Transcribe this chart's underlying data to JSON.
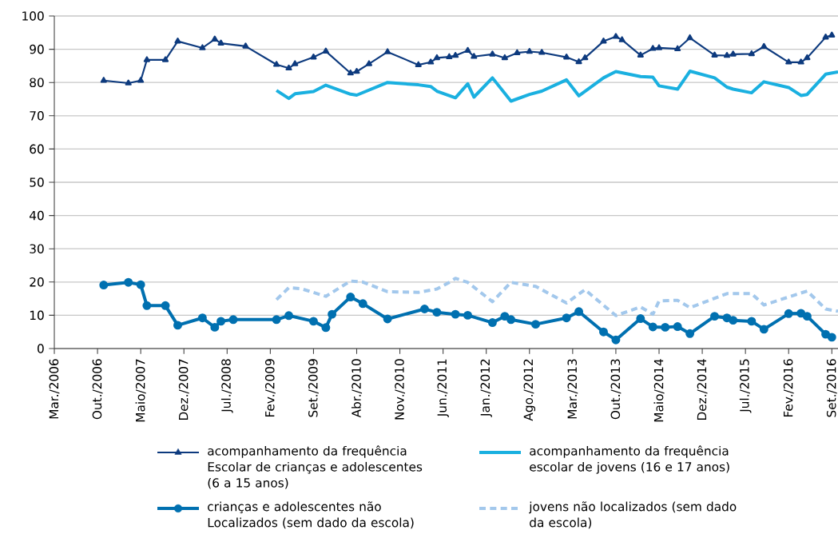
{
  "chart_data": {
    "type": "line",
    "xlim": [
      "2006-03",
      "2016-10"
    ],
    "ylim": [
      0,
      100
    ],
    "yticks": [
      0,
      10,
      20,
      30,
      40,
      50,
      60,
      70,
      80,
      90,
      100
    ],
    "xticks": [
      {
        "value": "2006-03",
        "label": "Mar./2006"
      },
      {
        "value": "2006-10",
        "label": "Out./2006"
      },
      {
        "value": "2007-05",
        "label": "Maio/2007"
      },
      {
        "value": "2007-12",
        "label": "Dez./2007"
      },
      {
        "value": "2008-07",
        "label": "Jul./2008"
      },
      {
        "value": "2009-02",
        "label": "Fev./2009"
      },
      {
        "value": "2009-09",
        "label": "Set./2009"
      },
      {
        "value": "2010-04",
        "label": "Abr./2010"
      },
      {
        "value": "2010-11",
        "label": "Nov./2010"
      },
      {
        "value": "2011-06",
        "label": "Jun./2011"
      },
      {
        "value": "2012-01",
        "label": "Jan./2012"
      },
      {
        "value": "2012-08",
        "label": "Ago./2012"
      },
      {
        "value": "2013-03",
        "label": "Mar./2013"
      },
      {
        "value": "2013-10",
        "label": "Out./2013"
      },
      {
        "value": "2014-05",
        "label": "Maio/2014"
      },
      {
        "value": "2014-12",
        "label": "Dez./2014"
      },
      {
        "value": "2015-07",
        "label": "Jul./2015"
      },
      {
        "value": "2016-02",
        "label": "Fev./2016"
      },
      {
        "value": "2016-09",
        "label": "Set./2016"
      }
    ],
    "grid": "y",
    "legend": "bottom",
    "series": [
      {
        "name": "acompanhamento da frequência Escolar de crianças e adolescentes (6 a 15 anos)",
        "color": "#0d3a7e",
        "marker": "triangle",
        "line_style": "solid",
        "x": [
          "2006-11",
          "2007-03",
          "2007-05",
          "2007-06",
          "2007-09",
          "2007-11",
          "2008-03",
          "2008-05",
          "2008-06",
          "2008-10",
          "2009-03",
          "2009-05",
          "2009-06",
          "2009-09",
          "2009-11",
          "2010-03",
          "2010-04",
          "2010-06",
          "2010-09",
          "2011-02",
          "2011-04",
          "2011-05",
          "2011-07",
          "2011-08",
          "2011-10",
          "2011-11",
          "2012-02",
          "2012-04",
          "2012-06",
          "2012-08",
          "2012-10",
          "2013-02",
          "2013-04",
          "2013-05",
          "2013-08",
          "2013-10",
          "2013-11",
          "2014-02",
          "2014-04",
          "2014-05",
          "2014-08",
          "2014-10",
          "2015-02",
          "2015-04",
          "2015-05",
          "2015-08",
          "2015-10",
          "2016-02",
          "2016-04",
          "2016-05",
          "2016-08",
          "2016-09"
        ],
        "values": [
          80.6,
          79.8,
          80.6,
          86.8,
          86.8,
          92.4,
          90.4,
          93.0,
          91.8,
          90.9,
          85.4,
          84.3,
          85.6,
          87.6,
          89.4,
          82.8,
          83.3,
          85.6,
          89.2,
          85.3,
          86.1,
          87.4,
          87.7,
          88.1,
          89.6,
          87.8,
          88.5,
          87.4,
          88.9,
          89.3,
          89.0,
          87.6,
          86.2,
          87.4,
          92.4,
          93.8,
          92.8,
          88.2,
          90.2,
          90.4,
          90.1,
          93.4,
          88.2,
          88.1,
          88.5,
          88.6,
          90.8,
          86.1,
          86.1,
          87.4,
          93.6,
          94.2
        ]
      },
      {
        "name": "acompanhamento da frequência escolar de jovens (16 e 17 anos)",
        "color": "#1ab0e0",
        "marker": "none",
        "line_style": "solid",
        "x": [
          "2009-03",
          "2009-05",
          "2009-06",
          "2009-09",
          "2009-11",
          "2010-03",
          "2010-04",
          "2010-09",
          "2011-02",
          "2011-04",
          "2011-05",
          "2011-08",
          "2011-10",
          "2011-11",
          "2012-02",
          "2012-05",
          "2012-08",
          "2012-10",
          "2013-02",
          "2013-04",
          "2013-08",
          "2013-10",
          "2014-02",
          "2014-04",
          "2014-05",
          "2014-08",
          "2014-10",
          "2015-02",
          "2015-04",
          "2015-05",
          "2015-08",
          "2015-10",
          "2016-02",
          "2016-04",
          "2016-05",
          "2016-08",
          "2016-10"
        ],
        "values": [
          77.6,
          75.2,
          76.6,
          77.3,
          79.2,
          76.5,
          76.2,
          80.0,
          79.3,
          78.8,
          77.4,
          75.4,
          79.6,
          75.6,
          81.4,
          74.4,
          76.4,
          77.4,
          80.8,
          76.0,
          81.4,
          83.3,
          81.8,
          81.6,
          79.0,
          78.0,
          83.4,
          81.4,
          78.6,
          78.0,
          76.9,
          80.2,
          78.5,
          76.1,
          76.4,
          82.5,
          83.2
        ]
      },
      {
        "name": "crianças e adolescentes não Localizados (sem dado da escola)",
        "color": "#0070b0",
        "marker": "circle",
        "line_style": "solid",
        "x": [
          "2006-11",
          "2007-03",
          "2007-05",
          "2007-06",
          "2007-09",
          "2007-11",
          "2008-03",
          "2008-05",
          "2008-06",
          "2008-08",
          "2009-03",
          "2009-05",
          "2009-09",
          "2009-11",
          "2009-12",
          "2010-03",
          "2010-05",
          "2010-09",
          "2011-03",
          "2011-05",
          "2011-08",
          "2011-10",
          "2012-02",
          "2012-04",
          "2012-05",
          "2012-09",
          "2013-02",
          "2013-04",
          "2013-08",
          "2013-10",
          "2014-02",
          "2014-04",
          "2014-06",
          "2014-08",
          "2014-10",
          "2015-02",
          "2015-04",
          "2015-05",
          "2015-08",
          "2015-10",
          "2016-02",
          "2016-04",
          "2016-05",
          "2016-08",
          "2016-09"
        ],
        "values": [
          19.1,
          19.9,
          19.2,
          12.9,
          12.9,
          7.0,
          9.2,
          6.4,
          8.2,
          8.7,
          8.7,
          9.9,
          8.2,
          6.3,
          10.3,
          15.5,
          13.5,
          8.9,
          11.9,
          10.9,
          10.3,
          10.0,
          7.8,
          9.7,
          8.7,
          7.3,
          9.2,
          11.1,
          5.0,
          2.6,
          9.0,
          6.5,
          6.4,
          6.6,
          4.5,
          9.7,
          9.2,
          8.5,
          8.2,
          5.8,
          10.5,
          10.6,
          9.7,
          4.3,
          3.4
        ]
      },
      {
        "name": "jovens não localizados (sem dado da escola)",
        "color": "#a3c8ec",
        "marker": "none",
        "line_style": "dashed",
        "x": [
          "2009-03",
          "2009-05",
          "2009-07",
          "2009-11",
          "2010-03",
          "2010-05",
          "2010-09",
          "2011-02",
          "2011-05",
          "2011-07",
          "2011-08",
          "2011-10",
          "2012-02",
          "2012-05",
          "2012-09",
          "2013-02",
          "2013-05",
          "2013-10",
          "2014-02",
          "2014-04",
          "2014-05",
          "2014-08",
          "2014-10",
          "2015-04",
          "2015-08",
          "2015-10",
          "2016-05",
          "2016-08",
          "2016-10"
        ],
        "values": [
          14.7,
          18.3,
          18.0,
          15.7,
          20.3,
          20.0,
          17.1,
          16.9,
          17.9,
          19.9,
          21.1,
          19.9,
          14.1,
          19.9,
          18.7,
          13.7,
          17.7,
          9.9,
          12.5,
          10.3,
          14.3,
          14.5,
          12.3,
          16.5,
          16.5,
          13.1,
          17.3,
          11.9,
          11.2
        ]
      }
    ]
  }
}
